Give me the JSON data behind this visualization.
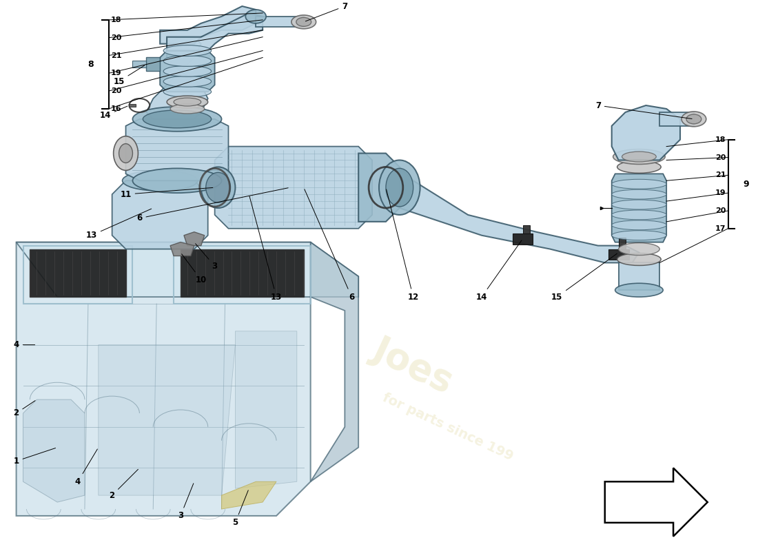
{
  "bg_color": "#ffffff",
  "blue_light": "#b8d2e2",
  "blue_mid": "#9abccc",
  "blue_dark": "#7aa0b0",
  "outline": "#3a5a6a",
  "filter_dark": "#2a2a2a",
  "gray_ring": "#c8c8c8",
  "gray_clamp": "#444444",
  "watermark1": "Joes",
  "watermark2": "for parts since 199",
  "wm_color": "#e0d8a0",
  "left_labels": [
    "18",
    "20",
    "21",
    "19",
    "20",
    "16"
  ],
  "right_labels": [
    "18",
    "20",
    "21",
    "19",
    "20",
    "17"
  ],
  "bracket_left": "8",
  "bracket_right": "9"
}
